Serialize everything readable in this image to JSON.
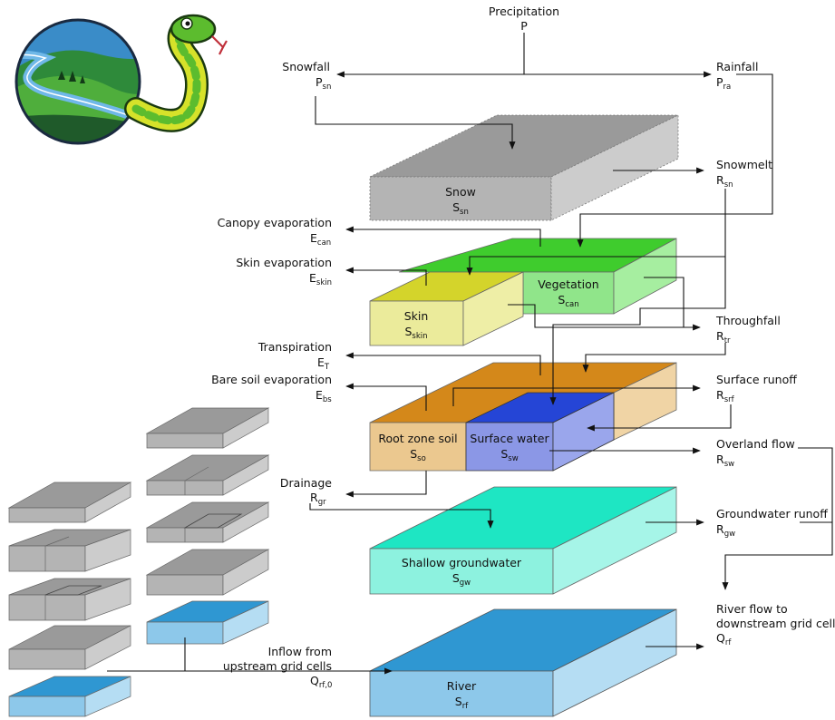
{
  "labels": {
    "precip": "Precipitation",
    "precip_sym": "P",
    "snowfall": "Snowfall",
    "snowfall_sym": "P",
    "snowfall_sub": "sn",
    "rainfall": "Rainfall",
    "rainfall_sym": "P",
    "rainfall_sub": "ra",
    "snowmelt": "Snowmelt",
    "snowmelt_sym": "R",
    "snowmelt_sub": "sn",
    "canopy_evap": "Canopy evaporation",
    "canopy_evap_sym": "E",
    "canopy_evap_sub": "can",
    "skin_evap": "Skin evaporation",
    "skin_evap_sym": "E",
    "skin_evap_sub": "skin",
    "throughfall": "Throughfall",
    "throughfall_sym": "R",
    "throughfall_sub": "tr",
    "transpiration": "Transpiration",
    "transpiration_sym": "E",
    "transpiration_sub": "T",
    "bare_soil_evap": "Bare soil evaporation",
    "bare_soil_evap_sym": "E",
    "bare_soil_evap_sub": "bs",
    "surface_runoff": "Surface runoff",
    "surface_runoff_sym": "R",
    "surface_runoff_sub": "srf",
    "overland_flow": "Overland flow",
    "overland_flow_sym": "R",
    "overland_flow_sub": "sw",
    "drainage": "Drainage",
    "drainage_sym": "R",
    "drainage_sub": "gr",
    "gw_runoff": "Groundwater runoff",
    "gw_runoff_sym": "R",
    "gw_runoff_sub": "gw",
    "river_flow_1": "River flow to",
    "river_flow_2": "downstream grid cell",
    "river_flow_sym": "Q",
    "river_flow_sub": "rf",
    "inflow_1": "Inflow from",
    "inflow_2": "upstream grid cells",
    "inflow_sym": "Q",
    "inflow_sub": "rf,0"
  },
  "stores": {
    "snow": "Snow",
    "snow_sym": "S",
    "snow_sub": "sn",
    "vegetation": "Vegetation",
    "vegetation_sym": "S",
    "vegetation_sub": "can",
    "skin": "Skin",
    "skin_sym": "S",
    "skin_sub": "skin",
    "root_zone": "Root zone soil",
    "root_zone_sym": "S",
    "root_zone_sub": "so",
    "surface_water": "Surface water",
    "surface_water_sym": "S",
    "surface_water_sub": "sw",
    "shallow_gw": "Shallow groundwater",
    "shallow_gw_sym": "S",
    "shallow_gw_sub": "gw",
    "river": "River",
    "river_sym": "S",
    "river_sub": "rf"
  },
  "colors": {
    "snow_top": "#9a9a9a",
    "snow_front": "#b4b4b4",
    "snow_side": "#cccccc",
    "veg_top": "#3fcc2d",
    "veg_front": "#90e58a",
    "veg_side": "#a6eea0",
    "skin_top": "#d4d42b",
    "skin_front": "#ebeb9b",
    "skin_side": "#eeeea6",
    "soil_top": "#d4881a",
    "soil_front": "#ebc88f",
    "soil_side": "#f0d4a5",
    "sw_top": "#2545d6",
    "sw_front": "#8b97e6",
    "gw_top": "#1ee6c3",
    "gw_front": "#8df2df",
    "gw_side": "#a6f5e8",
    "river_top": "#2f97d2",
    "river_front": "#8dc8ea",
    "river_side": "#b5ddf3"
  }
}
